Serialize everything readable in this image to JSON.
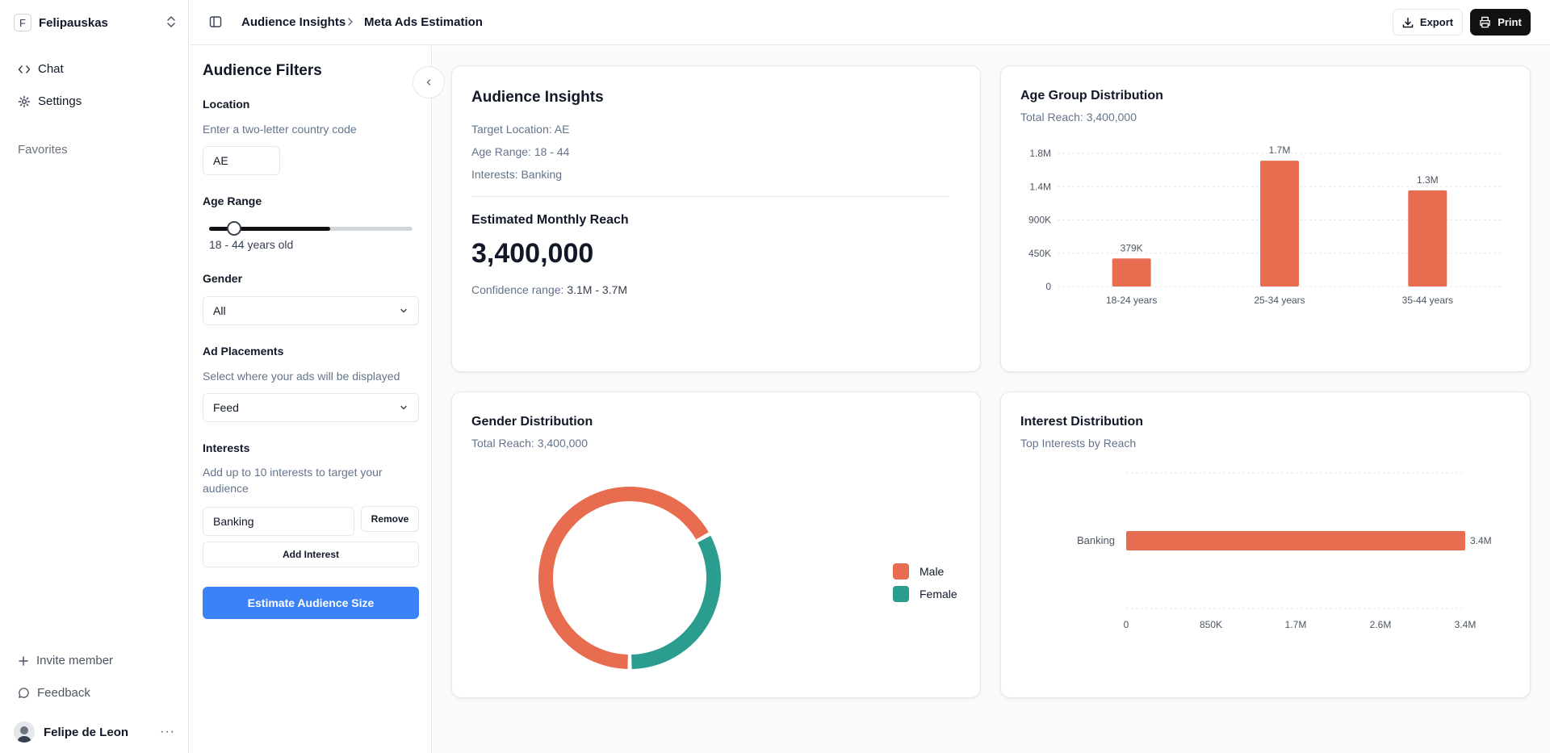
{
  "workspace": {
    "initial": "F",
    "name": "Felipauskas"
  },
  "nav": [
    {
      "label": "Chat",
      "icon": "code-icon"
    },
    {
      "label": "Settings",
      "icon": "gear-icon"
    }
  ],
  "favorites_label": "Favorites",
  "footer": {
    "invite": "Invite member",
    "feedback": "Feedback",
    "user": "Felipe de Leon",
    "more": "···"
  },
  "header": {
    "breadcrumb": [
      "Audience Insights",
      "Meta Ads Estimation"
    ],
    "export_label": "Export",
    "print_label": "Print"
  },
  "filters": {
    "title": "Audience Filters",
    "location": {
      "label": "Location",
      "help": "Enter a two-letter country code",
      "value": "AE"
    },
    "age": {
      "label": "Age Range",
      "min_value": 18,
      "max_value": 44,
      "summary": "18 - 44 years old"
    },
    "gender": {
      "label": "Gender",
      "selected": "All"
    },
    "placements": {
      "label": "Ad Placements",
      "help": "Select where your ads will be displayed",
      "selected": "Feed"
    },
    "interests": {
      "label": "Interests",
      "help": "Add up to 10 interests to target your audience",
      "value": "Banking",
      "remove_label": "Remove",
      "add_label": "Add Interest"
    },
    "submit_label": "Estimate Audience Size"
  },
  "insights": {
    "title": "Audience Insights",
    "location_line": "Target Location: AE",
    "age_line": "Age Range: 18 - 44",
    "interests_line": "Interests: Banking",
    "reach_title": "Estimated Monthly Reach",
    "reach_value": "3,400,000",
    "confidence_label": "Confidence range:",
    "confidence_value": "3.1M - 3.7M"
  },
  "age_card": {
    "title": "Age Group Distribution",
    "subtitle": "Total Reach: 3,400,000"
  },
  "gender_card": {
    "title": "Gender Distribution",
    "subtitle": "Total Reach: 3,400,000"
  },
  "interest_card": {
    "title": "Interest Distribution",
    "subtitle": "Top Interests by Reach"
  },
  "colors": {
    "accent_orange": "#e86c4f",
    "accent_teal": "#2a9d8f",
    "primary_blue": "#3b82f6"
  },
  "chart_data": [
    {
      "type": "bar",
      "title": "Age Group Distribution",
      "categories": [
        "18-24 years",
        "25-34 years",
        "35-44 years"
      ],
      "values": [
        379000,
        1700000,
        1300000
      ],
      "data_labels": [
        "379K",
        "1.7M",
        "1.3M"
      ],
      "yticks": [
        0,
        450000,
        900000,
        1350000,
        1800000
      ],
      "ytick_labels": [
        "0",
        "450K",
        "900K",
        "1.4M",
        "1.8M"
      ],
      "ylim": [
        0,
        1800000
      ],
      "grid": true
    },
    {
      "type": "pie",
      "title": "Gender Distribution",
      "series": [
        {
          "name": "Male",
          "value": 0.67
        },
        {
          "name": "Female",
          "value": 0.33
        }
      ],
      "legend": "right"
    },
    {
      "type": "bar",
      "orientation": "horizontal",
      "title": "Interest Distribution",
      "categories": [
        "Banking"
      ],
      "values": [
        3400000
      ],
      "data_labels": [
        "3.4M"
      ],
      "xticks": [
        0,
        850000,
        1700000,
        2550000,
        3400000
      ],
      "xtick_labels": [
        "0",
        "850K",
        "1.7M",
        "2.6M",
        "3.4M"
      ],
      "xlim": [
        0,
        3400000
      ],
      "grid": true
    }
  ]
}
